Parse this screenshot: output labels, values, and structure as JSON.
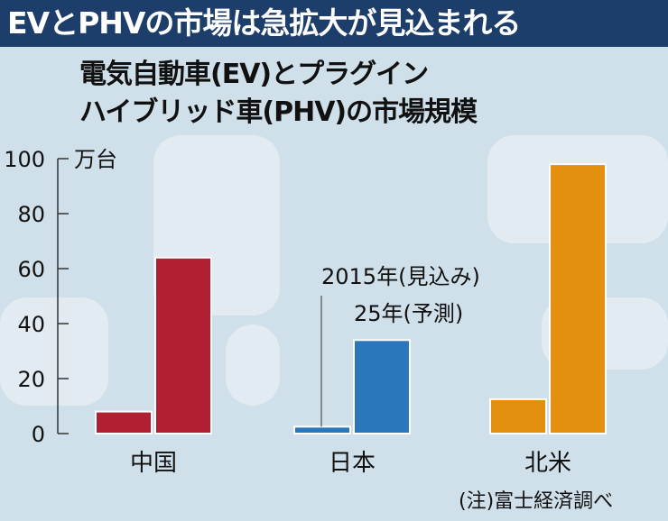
{
  "header": {
    "title": "EVとPHVの市場は急拡大が見込まれる"
  },
  "chart_data": {
    "type": "bar",
    "title": "電気自動車(EV)とプラグインハイブリッド車(PHV)の市場規模",
    "title_lines": [
      "電気自動車(EV)とプラグイン",
      "ハイブリッド車(PHV)の市場規模"
    ],
    "unit": "万台",
    "categories": [
      "中国",
      "日本",
      "北米"
    ],
    "series": [
      {
        "name": "2015年(見込み)",
        "values": [
          8,
          2.5,
          12.5
        ]
      },
      {
        "name": "25年(予測)",
        "values": [
          64,
          34,
          98
        ]
      }
    ],
    "yticks": [
      0,
      20,
      40,
      60,
      80,
      100
    ],
    "ylim": [
      0,
      100
    ],
    "category_colors": [
      "#b01f32",
      "#2a78bb",
      "#e2900e"
    ],
    "annotation_lines": [
      "2015年(見込み)",
      "25年(予測)"
    ],
    "grid": false
  },
  "footer": {
    "note": "(注)富士経済調べ"
  }
}
